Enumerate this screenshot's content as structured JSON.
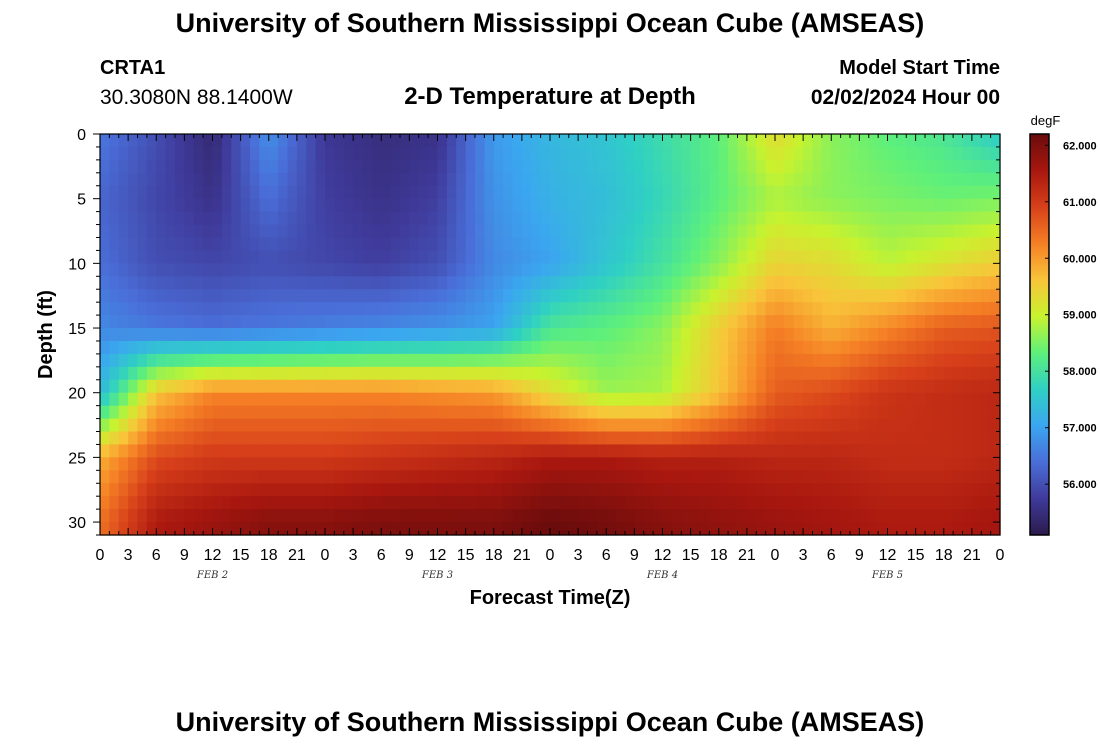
{
  "header": {
    "title": "University of Southern Mississippi Ocean Cube (AMSEAS)",
    "station_id": "CRTA1",
    "station_coords": "30.3080N  88.1400W",
    "chart_title": "2-D Temperature at Depth",
    "model_start_label": "Model Start Time",
    "model_start_value": "02/02/2024 Hour 00"
  },
  "footer": {
    "title": "University of Southern Mississippi Ocean Cube (AMSEAS)"
  },
  "chart_data": {
    "type": "heatmap",
    "title": "2-D Temperature at Depth",
    "xlabel": "Forecast Time(Z)",
    "ylabel": "Depth (ft)",
    "x_unit": "hours",
    "x_range": [
      0,
      96
    ],
    "x_tick_step": 3,
    "x_tick_labels": [
      "0",
      "3",
      "6",
      "9",
      "12",
      "15",
      "18",
      "21",
      "0",
      "3",
      "6",
      "9",
      "12",
      "15",
      "18",
      "21",
      "0",
      "3",
      "6",
      "9",
      "12",
      "15",
      "18",
      "21",
      "0",
      "3",
      "6",
      "9",
      "12",
      "15",
      "18",
      "21",
      "0"
    ],
    "date_labels": [
      {
        "label": "FEB 2",
        "x": 12
      },
      {
        "label": "FEB 3",
        "x": 36
      },
      {
        "label": "FEB 4",
        "x": 60
      },
      {
        "label": "FEB 5",
        "x": 84
      }
    ],
    "y_range": [
      0,
      31
    ],
    "y_inverted": true,
    "y_ticks": [
      0,
      5,
      10,
      15,
      20,
      25,
      30
    ],
    "colorbar": {
      "unit": "degF",
      "range": [
        55.1,
        62.2
      ],
      "ticks": [
        "56.000",
        "57.000",
        "58.000",
        "59.000",
        "60.000",
        "61.000",
        "62.000"
      ],
      "colors": [
        "#2b1a4d",
        "#3f3a9a",
        "#4a6ed8",
        "#3ba6f0",
        "#2fd0c4",
        "#5ef07a",
        "#c8f22e",
        "#f9c43a",
        "#f57f25",
        "#d7401a",
        "#a8170f",
        "#6a0c0c"
      ]
    },
    "grid": false,
    "depth_levels_ft": [
      0,
      5,
      10,
      15,
      20,
      25,
      30
    ],
    "time_hours": [
      0,
      6,
      12,
      18,
      24,
      30,
      36,
      42,
      48,
      54,
      60,
      66,
      72,
      78,
      84,
      90,
      96
    ],
    "temperature_degF": [
      [
        56.5,
        56.0,
        55.4,
        56.8,
        55.7,
        55.5,
        55.6,
        56.9,
        57.3,
        57.5,
        57.9,
        58.3,
        59.3,
        58.6,
        58.3,
        58.1,
        57.6
      ],
      [
        56.3,
        55.9,
        55.6,
        56.4,
        55.8,
        55.6,
        55.8,
        56.8,
        57.2,
        57.4,
        57.8,
        58.3,
        58.8,
        58.6,
        58.5,
        58.4,
        58.5
      ],
      [
        56.4,
        56.0,
        55.9,
        56.0,
        55.9,
        55.8,
        56.0,
        56.7,
        57.0,
        57.5,
        58.0,
        58.6,
        59.4,
        59.3,
        58.9,
        59.2,
        59.5
      ],
      [
        56.7,
        56.5,
        56.4,
        56.5,
        56.6,
        56.7,
        56.8,
        57.0,
        58.1,
        58.3,
        58.6,
        59.5,
        60.3,
        59.8,
        60.2,
        60.6,
        60.7
      ],
      [
        57.3,
        59.6,
        60.2,
        60.2,
        60.2,
        60.2,
        60.1,
        60.0,
        59.3,
        58.7,
        58.8,
        59.6,
        60.6,
        60.8,
        61.1,
        61.2,
        61.3
      ],
      [
        59.8,
        60.8,
        61.0,
        61.0,
        61.0,
        61.1,
        61.2,
        61.3,
        61.5,
        61.5,
        61.4,
        61.4,
        61.3,
        61.3,
        61.2,
        61.2,
        61.3
      ],
      [
        60.4,
        61.5,
        61.7,
        61.9,
        61.9,
        62.0,
        62.0,
        62.0,
        62.2,
        62.1,
        61.9,
        61.8,
        61.7,
        61.6,
        61.5,
        61.5,
        61.6
      ]
    ]
  }
}
